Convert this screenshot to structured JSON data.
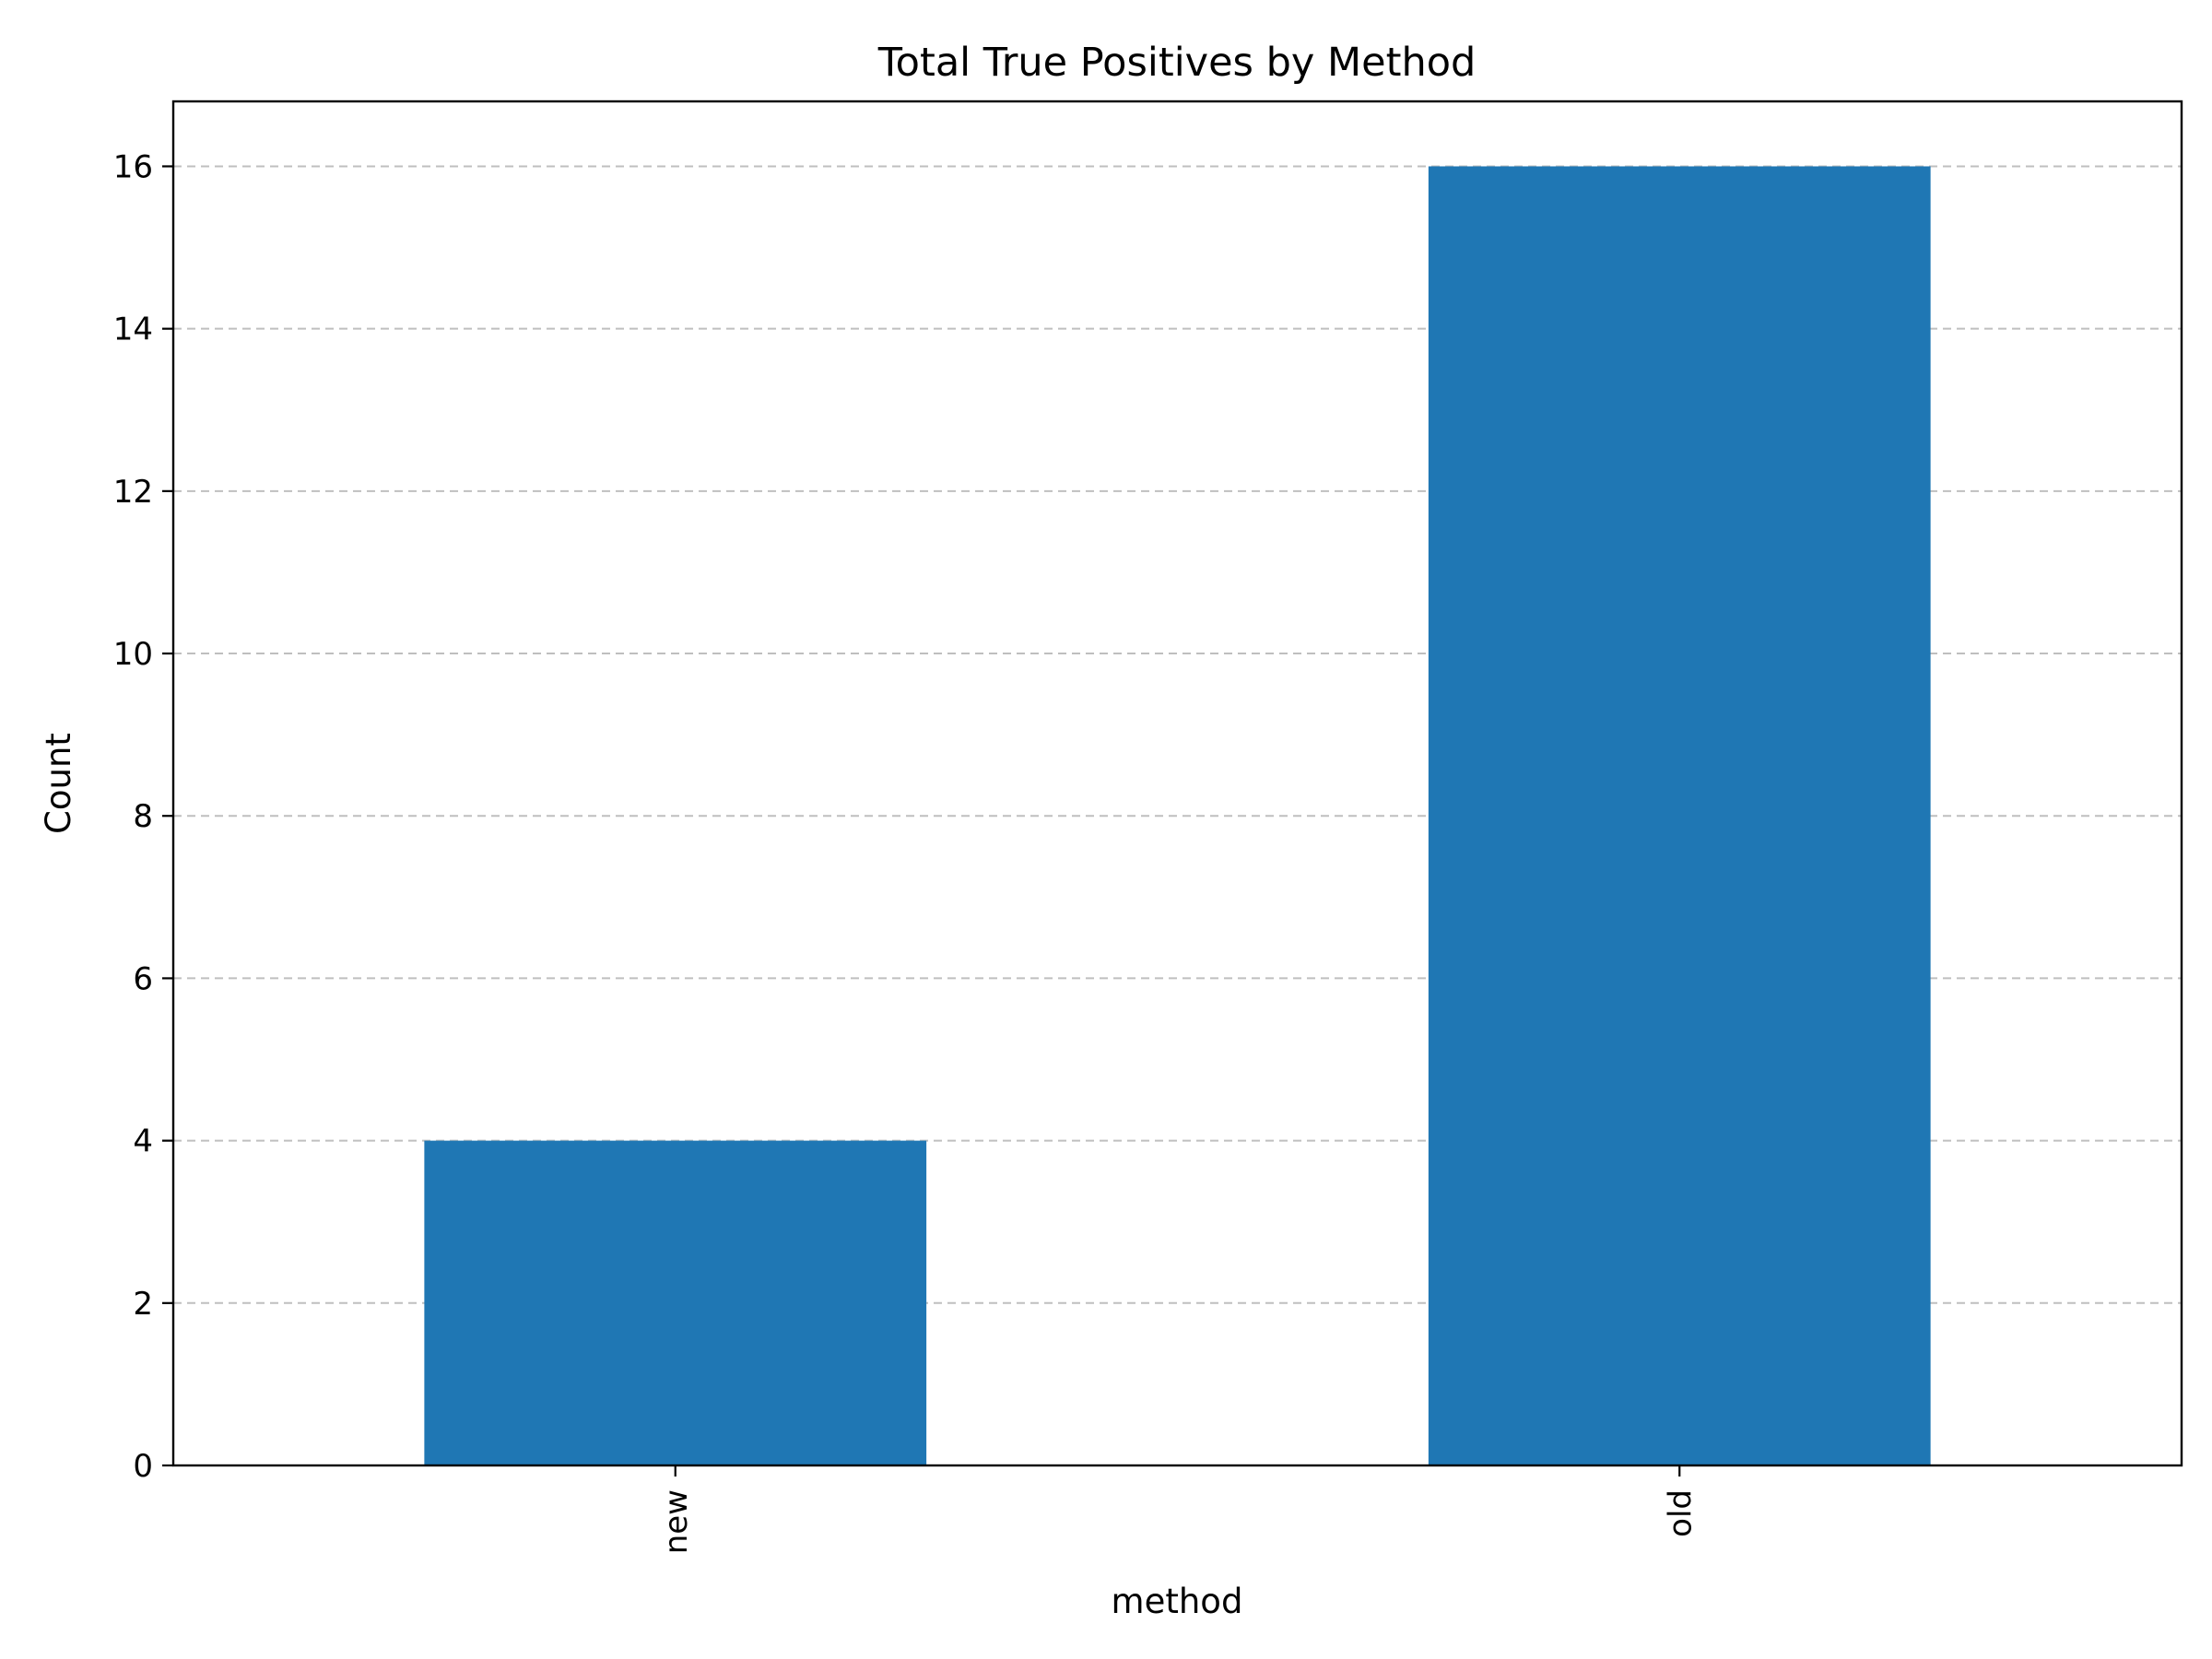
{
  "chart_data": {
    "type": "bar",
    "title": "Total True Positives by Method",
    "xlabel": "method",
    "ylabel": "Count",
    "categories": [
      "new",
      "old"
    ],
    "values": [
      4,
      16
    ],
    "ylim": [
      0,
      16.8
    ],
    "yticks": [
      0,
      2,
      4,
      6,
      8,
      10,
      12,
      14,
      16
    ],
    "grid": {
      "axis": "y",
      "style": "dashed",
      "on": true
    },
    "x_tick_rotation": 90,
    "bar_color": "#1f77b4",
    "legend": "none"
  }
}
